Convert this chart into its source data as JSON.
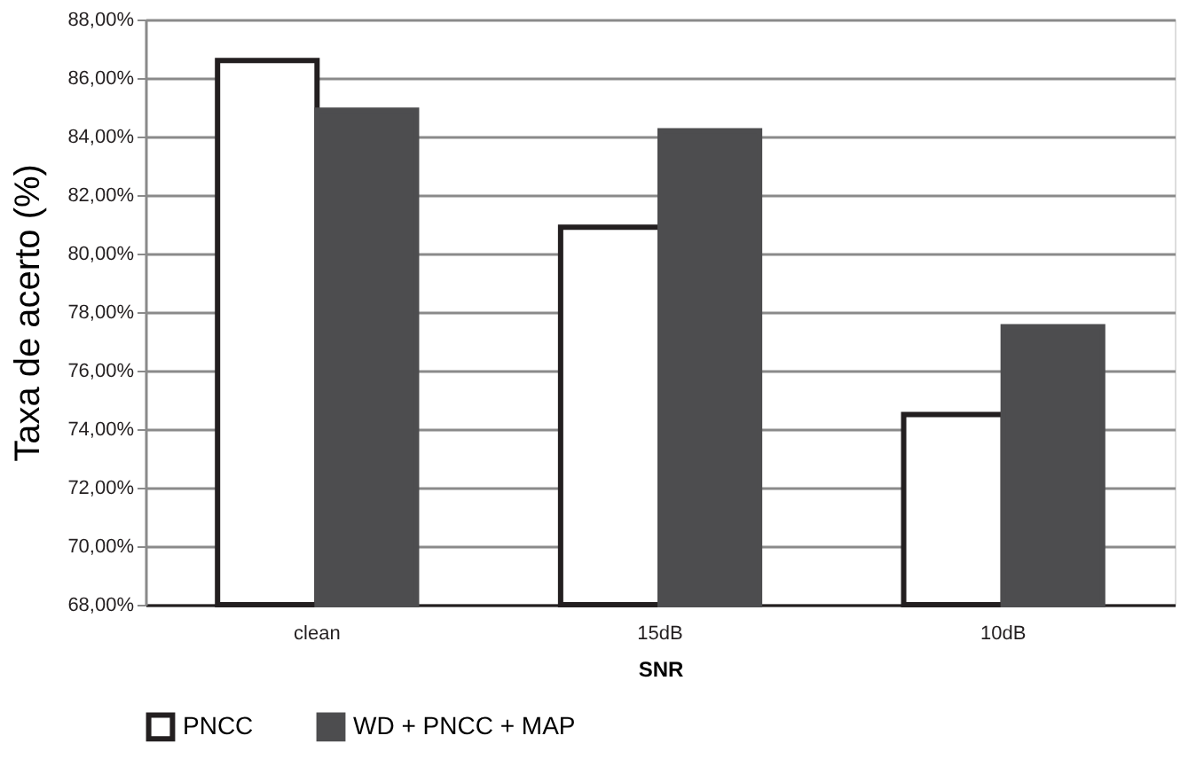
{
  "chart_data": {
    "type": "bar",
    "xlabel": "SNR",
    "ylabel": "Taxa de acerto (%)",
    "categories": [
      "clean",
      "15dB",
      "10dB"
    ],
    "series": [
      {
        "name": "PNCC",
        "color": "#ffffff",
        "values": [
          86.6,
          80.9,
          74.5
        ]
      },
      {
        "name": "WD + PNCC + MAP",
        "color": "#4d4d4f",
        "values": [
          84.9,
          84.2,
          77.5
        ]
      }
    ],
    "ylim": [
      68,
      88
    ],
    "yticks": [
      {
        "value": 68,
        "label": "68,00%"
      },
      {
        "value": 70,
        "label": "70,00%"
      },
      {
        "value": 72,
        "label": "72,00%"
      },
      {
        "value": 74,
        "label": "74,00%"
      },
      {
        "value": 76,
        "label": "76,00%"
      },
      {
        "value": 78,
        "label": "78,00%"
      },
      {
        "value": 80,
        "label": "80,00%"
      },
      {
        "value": 82,
        "label": "82,00%"
      },
      {
        "value": 84,
        "label": "84,00%"
      },
      {
        "value": 86,
        "label": "86,00%"
      },
      {
        "value": 88,
        "label": "88,00%"
      }
    ],
    "grid": "y",
    "legend": "bottom"
  }
}
